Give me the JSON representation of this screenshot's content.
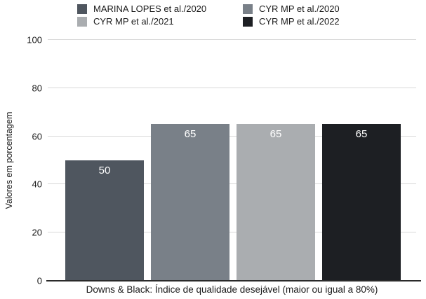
{
  "chart_data": {
    "type": "bar",
    "title": "",
    "xlabel": "Downs & Black: Índice de qualidade desejável (maior ou igual a 80%)",
    "ylabel": "Valores em porcentagem",
    "ylim": [
      0,
      100
    ],
    "yticks": [
      0,
      20,
      40,
      60,
      80,
      100
    ],
    "grid": true,
    "legend_position": "top",
    "value_label_color": "#ffffff",
    "gridline_color": "#d8d8d8",
    "baseline_color": "#2a2a2a",
    "series": [
      {
        "name": "MARINA LOPES et al./2020",
        "value": 50,
        "color": "#4f565f"
      },
      {
        "name": "CYR MP et al./2020",
        "value": 65,
        "color": "#798088"
      },
      {
        "name": "CYR MP et al./2021",
        "value": 65,
        "color": "#aaadb0"
      },
      {
        "name": "CYR MP et al./2022",
        "value": 65,
        "color": "#1d1f23"
      }
    ]
  }
}
